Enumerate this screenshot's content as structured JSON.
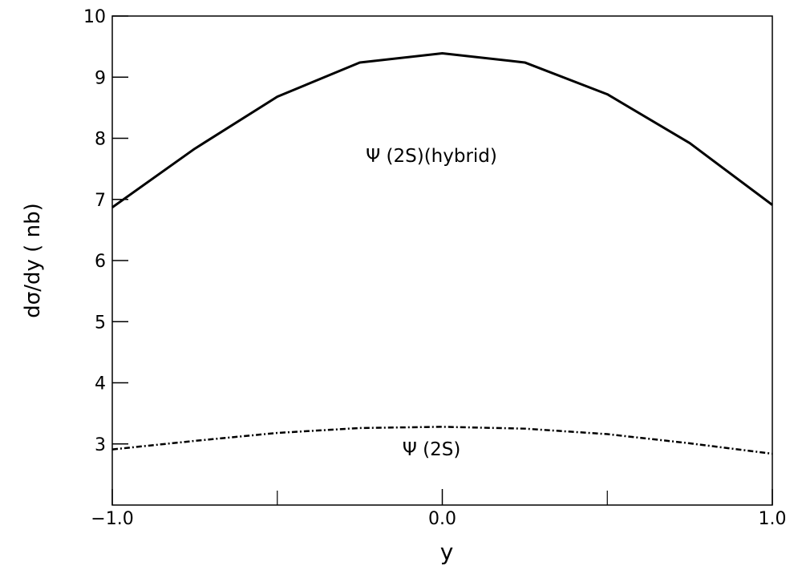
{
  "chart_data": {
    "type": "line",
    "xlabel": "y",
    "ylabel": "dσ/dy ( nb)",
    "x": [
      -1,
      -0.75,
      -0.5,
      -0.25,
      0,
      0.25,
      0.5,
      0.75,
      1
    ],
    "series": [
      {
        "name": "Ψ (2S)(hybrid)",
        "color": "#000000",
        "dash": "solid",
        "values": [
          6.87,
          7.83,
          8.68,
          9.24,
          9.39,
          9.24,
          8.72,
          7.92,
          6.91
        ]
      },
      {
        "name": "Ψ (2S)",
        "color": "#000000",
        "dash": "dashdot",
        "values": [
          2.91,
          3.05,
          3.18,
          3.26,
          3.28,
          3.25,
          3.16,
          3.01,
          2.84
        ]
      }
    ],
    "xlim": [
      -1,
      1
    ],
    "xticks": [
      {
        "value": -1,
        "label": "−1.0"
      },
      {
        "value": 0,
        "label": "0.0"
      },
      {
        "value": 1,
        "label": "1.0"
      }
    ],
    "xminorticks": [
      -0.5,
      0.5
    ],
    "ylim": [
      2,
      10
    ],
    "yticks": [
      3,
      4,
      5,
      6,
      7,
      8,
      9,
      10
    ],
    "grid": false
  }
}
